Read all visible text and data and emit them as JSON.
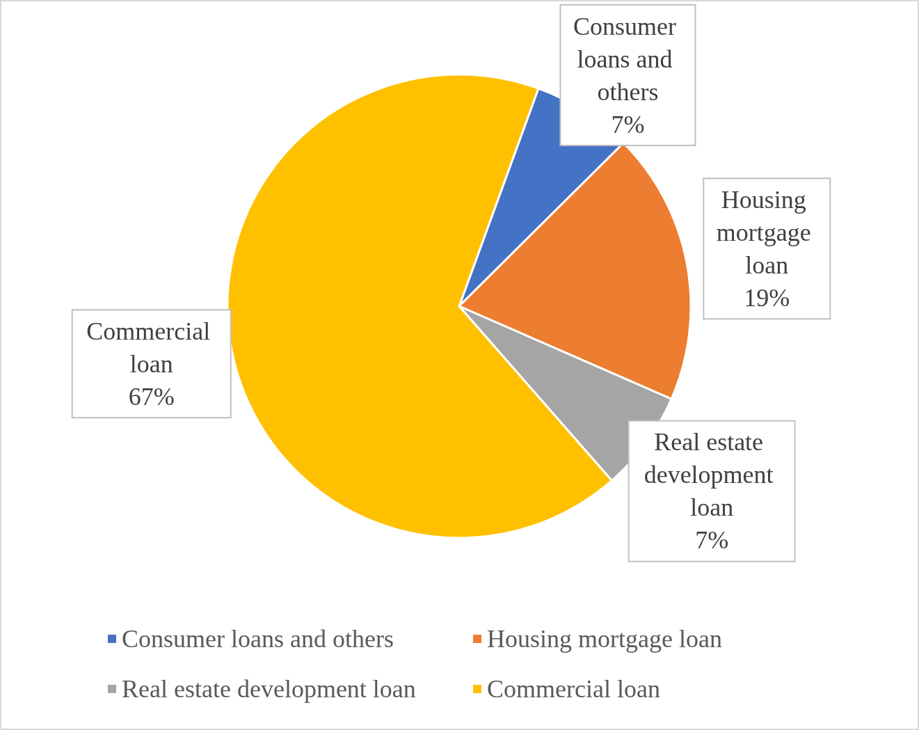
{
  "chart_data": {
    "type": "pie",
    "categories": [
      "Consumer loans and others",
      "Housing mortgage loan",
      "Real estate development loan",
      "Commercial loan"
    ],
    "values": [
      7,
      19,
      7,
      67
    ],
    "colors": [
      "#4472c4",
      "#ed7d31",
      "#a5a5a5",
      "#ffc000"
    ],
    "value_labels": [
      "7%",
      "19%",
      "7%",
      "67%"
    ],
    "legend": "bottom"
  }
}
